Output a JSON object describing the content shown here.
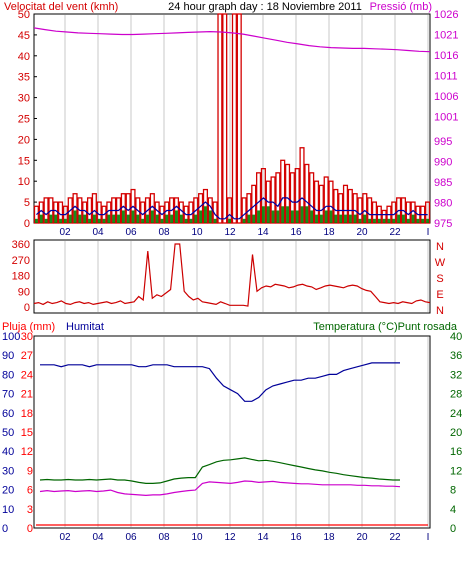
{
  "header": {
    "left": "Velocitat del vent (kmh)",
    "center": "24 hour graph day : 18 Noviembre 2011",
    "right": "Pressió (mb)"
  },
  "colors": {
    "wind": "#d40000",
    "gust": "#008000",
    "avg": "#0000a0",
    "pressure": "#cc00cc",
    "direction": "#cc0000",
    "humidity": "#000099",
    "temperature": "#006600",
    "dewpoint": "#cc00cc",
    "rain": "#ff0000",
    "grid": "#c8c8c8"
  },
  "chart_data": [
    {
      "type": "bar",
      "name": "wind-pressure",
      "xticks": [
        "02",
        "04",
        "06",
        "08",
        "10",
        "12",
        "14",
        "16",
        "18",
        "20",
        "22",
        "I"
      ],
      "left_axis": {
        "label": "Velocitat del vent (kmh)",
        "ticks": [
          0,
          5,
          10,
          15,
          20,
          25,
          30,
          35,
          40,
          45,
          50
        ],
        "range": [
          0,
          50
        ]
      },
      "right_axis": {
        "label": "Pressió (mb)",
        "ticks": [
          975,
          980,
          985,
          990,
          995,
          1001,
          1006,
          1011,
          1016,
          1021,
          1026
        ],
        "range": [
          975,
          1026
        ]
      },
      "series": [
        {
          "name": "Velocitat del vent (kmh)",
          "values": [
            4,
            5,
            6,
            6,
            5,
            5,
            4,
            6,
            7,
            6,
            5,
            6,
            7,
            5,
            4,
            5,
            6,
            6,
            7,
            7,
            8,
            6,
            5,
            6,
            7,
            5,
            4,
            5,
            6,
            6,
            5,
            4,
            5,
            6,
            7,
            8,
            6,
            5,
            50,
            50,
            6,
            50,
            50,
            6,
            7,
            9,
            12,
            13,
            10,
            11,
            12,
            15,
            14,
            12,
            13,
            18,
            14,
            12,
            10,
            9,
            11,
            10,
            8,
            7,
            9,
            8,
            7,
            6,
            7,
            6,
            5,
            4,
            3,
            4,
            5,
            6,
            6,
            5,
            5,
            4,
            4,
            5
          ]
        },
        {
          "name": "gust",
          "values": [
            1,
            2,
            1,
            2,
            2,
            1,
            1,
            2,
            3,
            2,
            2,
            1,
            2,
            1,
            1,
            2,
            2,
            2,
            3,
            2,
            3,
            2,
            1,
            2,
            3,
            2,
            1,
            2,
            2,
            3,
            2,
            1,
            1,
            2,
            3,
            4,
            3,
            1,
            0,
            0,
            1,
            0,
            0,
            1,
            2,
            2,
            3,
            4,
            4,
            3,
            3,
            4,
            4,
            3,
            3,
            4,
            4,
            3,
            2,
            2,
            3,
            3,
            2,
            2,
            2,
            2,
            2,
            1,
            2,
            1,
            1,
            1,
            1,
            1,
            1,
            2,
            2,
            1,
            2,
            1,
            1,
            1
          ]
        },
        {
          "name": "avg",
          "values": [
            2,
            3,
            2,
            3,
            3,
            2,
            2,
            3,
            4,
            3,
            3,
            2,
            3,
            2,
            2,
            3,
            3,
            3,
            4,
            3,
            4,
            3,
            2,
            3,
            4,
            3,
            2,
            3,
            3,
            4,
            3,
            2,
            2,
            3,
            4,
            5,
            4,
            2,
            1,
            1,
            2,
            1,
            1,
            2,
            3,
            4,
            5,
            6,
            5,
            5,
            4,
            6,
            6,
            5,
            5,
            6,
            5,
            4,
            3,
            3,
            4,
            4,
            3,
            3,
            3,
            3,
            3,
            2,
            3,
            2,
            2,
            2,
            2,
            2,
            2,
            3,
            3,
            2,
            3,
            2,
            2,
            2
          ]
        },
        {
          "name": "Pressió (mb)",
          "values": [
            1022.6,
            1022.2,
            1021.8,
            1021.6,
            1021.4,
            1021.3,
            1021.2,
            1021.1,
            1021.0,
            1021.0,
            1021.1,
            1021.2,
            1021.3,
            1021.4,
            1021.5,
            1021.6,
            1021.7,
            1021.6,
            1021.4,
            1021.1,
            1020.6,
            1020.1,
            1019.6,
            1019.1,
            1018.7,
            1018.3,
            1018.0,
            1017.8,
            1017.7,
            1017.6,
            1017.6,
            1017.5,
            1017.4,
            1017.3,
            1017.1,
            1016.9,
            1016.8
          ]
        }
      ]
    },
    {
      "type": "line",
      "name": "wind-direction",
      "xticks": [
        "02",
        "04",
        "06",
        "08",
        "10",
        "12",
        "14",
        "16",
        "18",
        "20",
        "22",
        "I"
      ],
      "left_axis": {
        "ticks": [
          0,
          90,
          180,
          270,
          360
        ],
        "range": [
          0,
          360
        ]
      },
      "right_axis": {
        "ticks": [
          "N",
          "W",
          "S",
          "E",
          "N"
        ]
      },
      "series": [
        {
          "name": "direction",
          "values": [
            20,
            25,
            15,
            30,
            20,
            25,
            35,
            20,
            15,
            25,
            30,
            20,
            25,
            15,
            20,
            25,
            30,
            20,
            25,
            35,
            20,
            25,
            30,
            60,
            40,
            320,
            50,
            70,
            60,
            80,
            100,
            360,
            360,
            90,
            60,
            40,
            50,
            30,
            25,
            20,
            15,
            30,
            20,
            10,
            10,
            10,
            10,
            5,
            300,
            90,
            110,
            120,
            115,
            130,
            125,
            120,
            110,
            115,
            125,
            130,
            120,
            115,
            100,
            110,
            120,
            125,
            120,
            115,
            110,
            120,
            125,
            120,
            105,
            95,
            90,
            60,
            30,
            25,
            20,
            25,
            20,
            30,
            25,
            20,
            35,
            40,
            30,
            25
          ]
        }
      ]
    },
    {
      "type": "line",
      "name": "humidity-temperature",
      "xticks": [
        "02",
        "04",
        "06",
        "08",
        "10",
        "12",
        "14",
        "16",
        "18",
        "20",
        "22",
        "I"
      ],
      "left_axis": {
        "label": "Pluja (mm)",
        "ticks": [
          0,
          3,
          6,
          9,
          12,
          15,
          18,
          21,
          24,
          27,
          30
        ],
        "range": [
          0,
          30
        ]
      },
      "left_axis2": {
        "label": "Humitat",
        "ticks": [
          0,
          10,
          20,
          30,
          40,
          50,
          60,
          70,
          80,
          90,
          100
        ],
        "range": [
          0,
          100
        ]
      },
      "right_axis": {
        "label": "Temperatura (°C)Punt rosada",
        "ticks": [
          0,
          4,
          8,
          12,
          16,
          20,
          24,
          28,
          32,
          36,
          40
        ],
        "range": [
          0,
          40
        ]
      },
      "series": [
        {
          "name": "Humitat",
          "values": [
            85,
            85,
            85,
            84,
            85,
            85,
            85,
            84,
            85,
            85,
            85,
            85,
            85,
            85,
            84,
            84,
            85,
            85,
            85,
            84,
            84,
            84,
            84,
            84,
            83,
            78,
            74,
            72,
            70,
            66,
            66,
            68,
            72,
            74,
            75,
            76,
            77,
            77,
            78,
            78,
            79,
            80,
            80,
            82,
            83,
            84,
            85,
            86,
            86,
            86,
            86,
            86
          ]
        },
        {
          "name": "Temperatura (°C)",
          "values": [
            10.0,
            10.1,
            10.0,
            10.0,
            10.1,
            10.0,
            10.0,
            10.1,
            10.0,
            10.1,
            10.2,
            10.0,
            10.0,
            9.8,
            9.5,
            9.3,
            9.3,
            9.4,
            9.8,
            10.2,
            10.4,
            10.5,
            10.5,
            12.7,
            13.2,
            13.8,
            14.1,
            14.2,
            14.4,
            14.6,
            14.3,
            14.0,
            14.1,
            13.9,
            13.6,
            13.3,
            13.0,
            12.7,
            12.4,
            12.1,
            11.9,
            11.6,
            11.4,
            11.1,
            10.9,
            10.7,
            10.5,
            10.4,
            10.2,
            10.1,
            10.0,
            10.0
          ]
        },
        {
          "name": "Punt rosada",
          "values": [
            7.6,
            7.8,
            7.6,
            7.7,
            7.8,
            7.6,
            7.7,
            7.8,
            7.6,
            7.7,
            7.9,
            7.4,
            7.1,
            7.0,
            6.9,
            6.8,
            6.9,
            6.9,
            7.1,
            7.4,
            7.6,
            7.8,
            7.9,
            9.3,
            9.6,
            9.5,
            9.4,
            9.3,
            9.5,
            9.8,
            9.7,
            9.5,
            9.6,
            9.7,
            9.5,
            9.4,
            9.3,
            9.2,
            9.2,
            9.1,
            9.0,
            9.0,
            9.0,
            9.0,
            9.0,
            8.9,
            8.9,
            8.8,
            8.8,
            8.7,
            8.7,
            8.6
          ]
        },
        {
          "name": "Pluja (mm)",
          "values": [
            0,
            0,
            0,
            0,
            0,
            0,
            0,
            0,
            0,
            0,
            0,
            0
          ]
        }
      ]
    }
  ]
}
